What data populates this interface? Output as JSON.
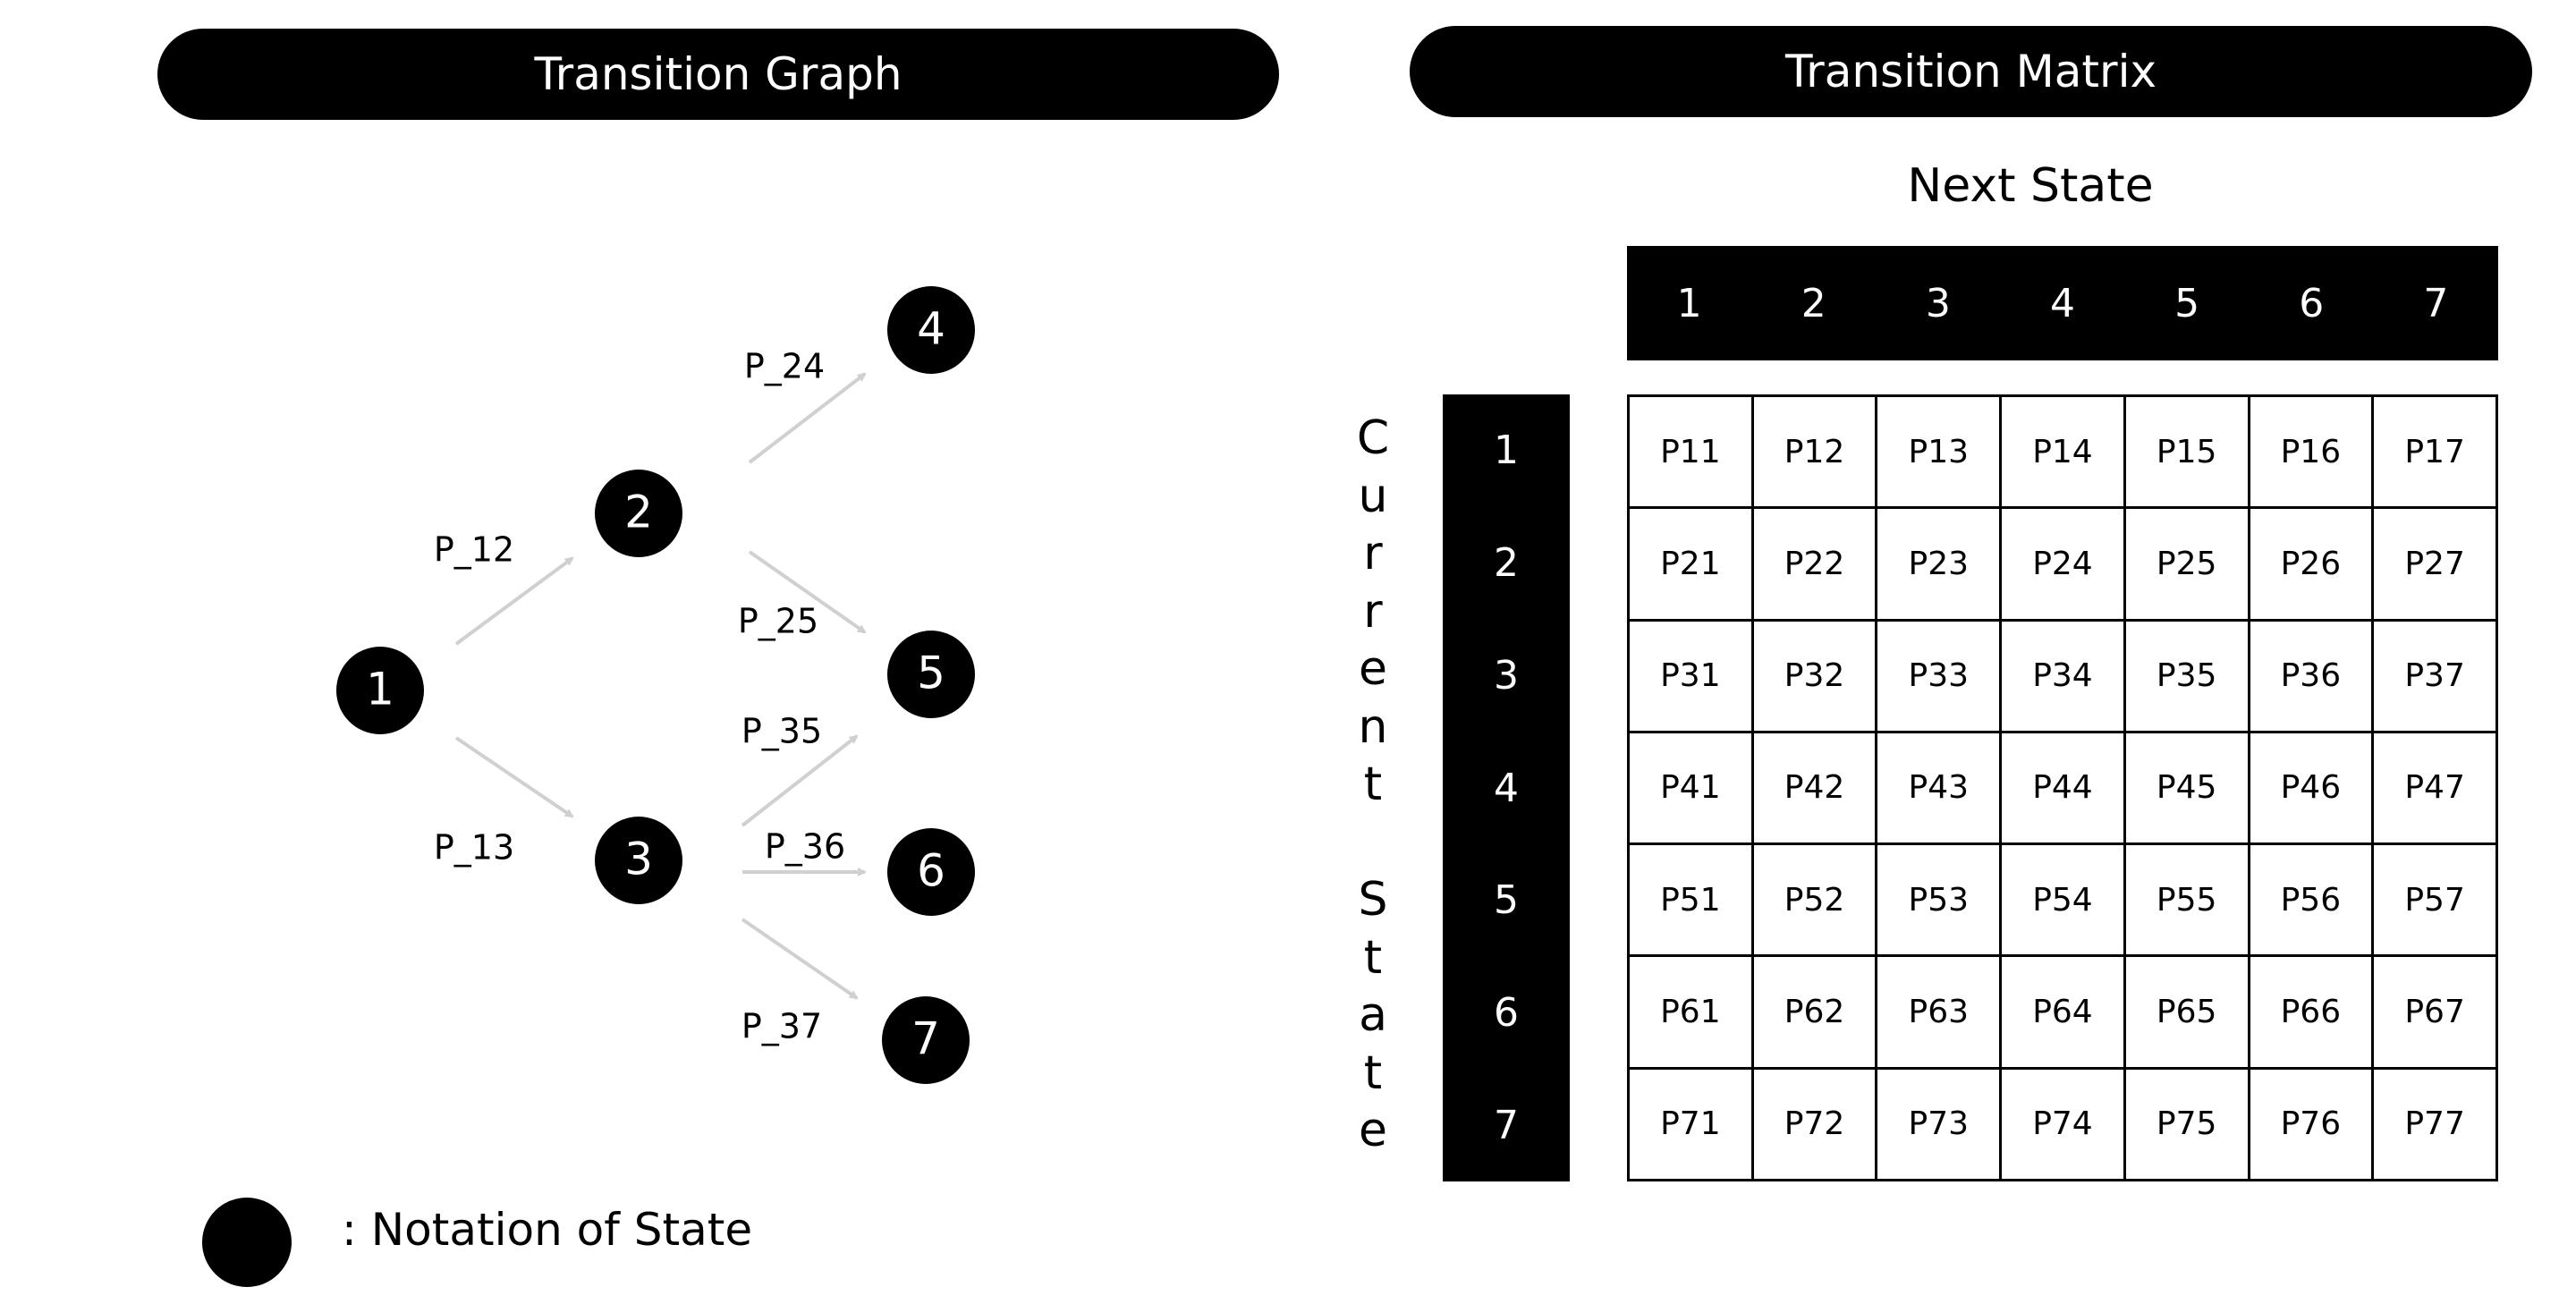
{
  "graph": {
    "title": "Transition Graph",
    "nodes": [
      {
        "id": "1",
        "label": "1"
      },
      {
        "id": "2",
        "label": "2"
      },
      {
        "id": "3",
        "label": "3"
      },
      {
        "id": "4",
        "label": "4"
      },
      {
        "id": "5",
        "label": "5"
      },
      {
        "id": "6",
        "label": "6"
      },
      {
        "id": "7",
        "label": "7"
      }
    ],
    "edges": [
      {
        "from": "1",
        "to": "2",
        "label": "P_12"
      },
      {
        "from": "1",
        "to": "3",
        "label": "P_13"
      },
      {
        "from": "2",
        "to": "4",
        "label": "P_24"
      },
      {
        "from": "2",
        "to": "5",
        "label": "P_25"
      },
      {
        "from": "3",
        "to": "5",
        "label": "P_35"
      },
      {
        "from": "3",
        "to": "6",
        "label": "P_36"
      },
      {
        "from": "3",
        "to": "7",
        "label": "P_37"
      }
    ],
    "node_color": "#000000",
    "edge_color": "#d0d0d0"
  },
  "legend": {
    "text": ": Notation of State"
  },
  "matrix": {
    "title": "Transition Matrix",
    "column_axis_label": "Next State",
    "row_axis_label": "Current State",
    "column_headers": [
      "1",
      "2",
      "3",
      "4",
      "5",
      "6",
      "7"
    ],
    "row_headers": [
      "1",
      "2",
      "3",
      "4",
      "5",
      "6",
      "7"
    ],
    "cells": [
      [
        "P11",
        "P12",
        "P13",
        "P14",
        "P15",
        "P16",
        "P17"
      ],
      [
        "P21",
        "P22",
        "P23",
        "P24",
        "P25",
        "P26",
        "P27"
      ],
      [
        "P31",
        "P32",
        "P33",
        "P34",
        "P35",
        "P36",
        "P37"
      ],
      [
        "P41",
        "P42",
        "P43",
        "P44",
        "P45",
        "P46",
        "P47"
      ],
      [
        "P51",
        "P52",
        "P53",
        "P54",
        "P55",
        "P56",
        "P57"
      ],
      [
        "P61",
        "P62",
        "P63",
        "P64",
        "P65",
        "P66",
        "P67"
      ],
      [
        "P71",
        "P72",
        "P73",
        "P74",
        "P75",
        "P76",
        "P77"
      ]
    ]
  }
}
